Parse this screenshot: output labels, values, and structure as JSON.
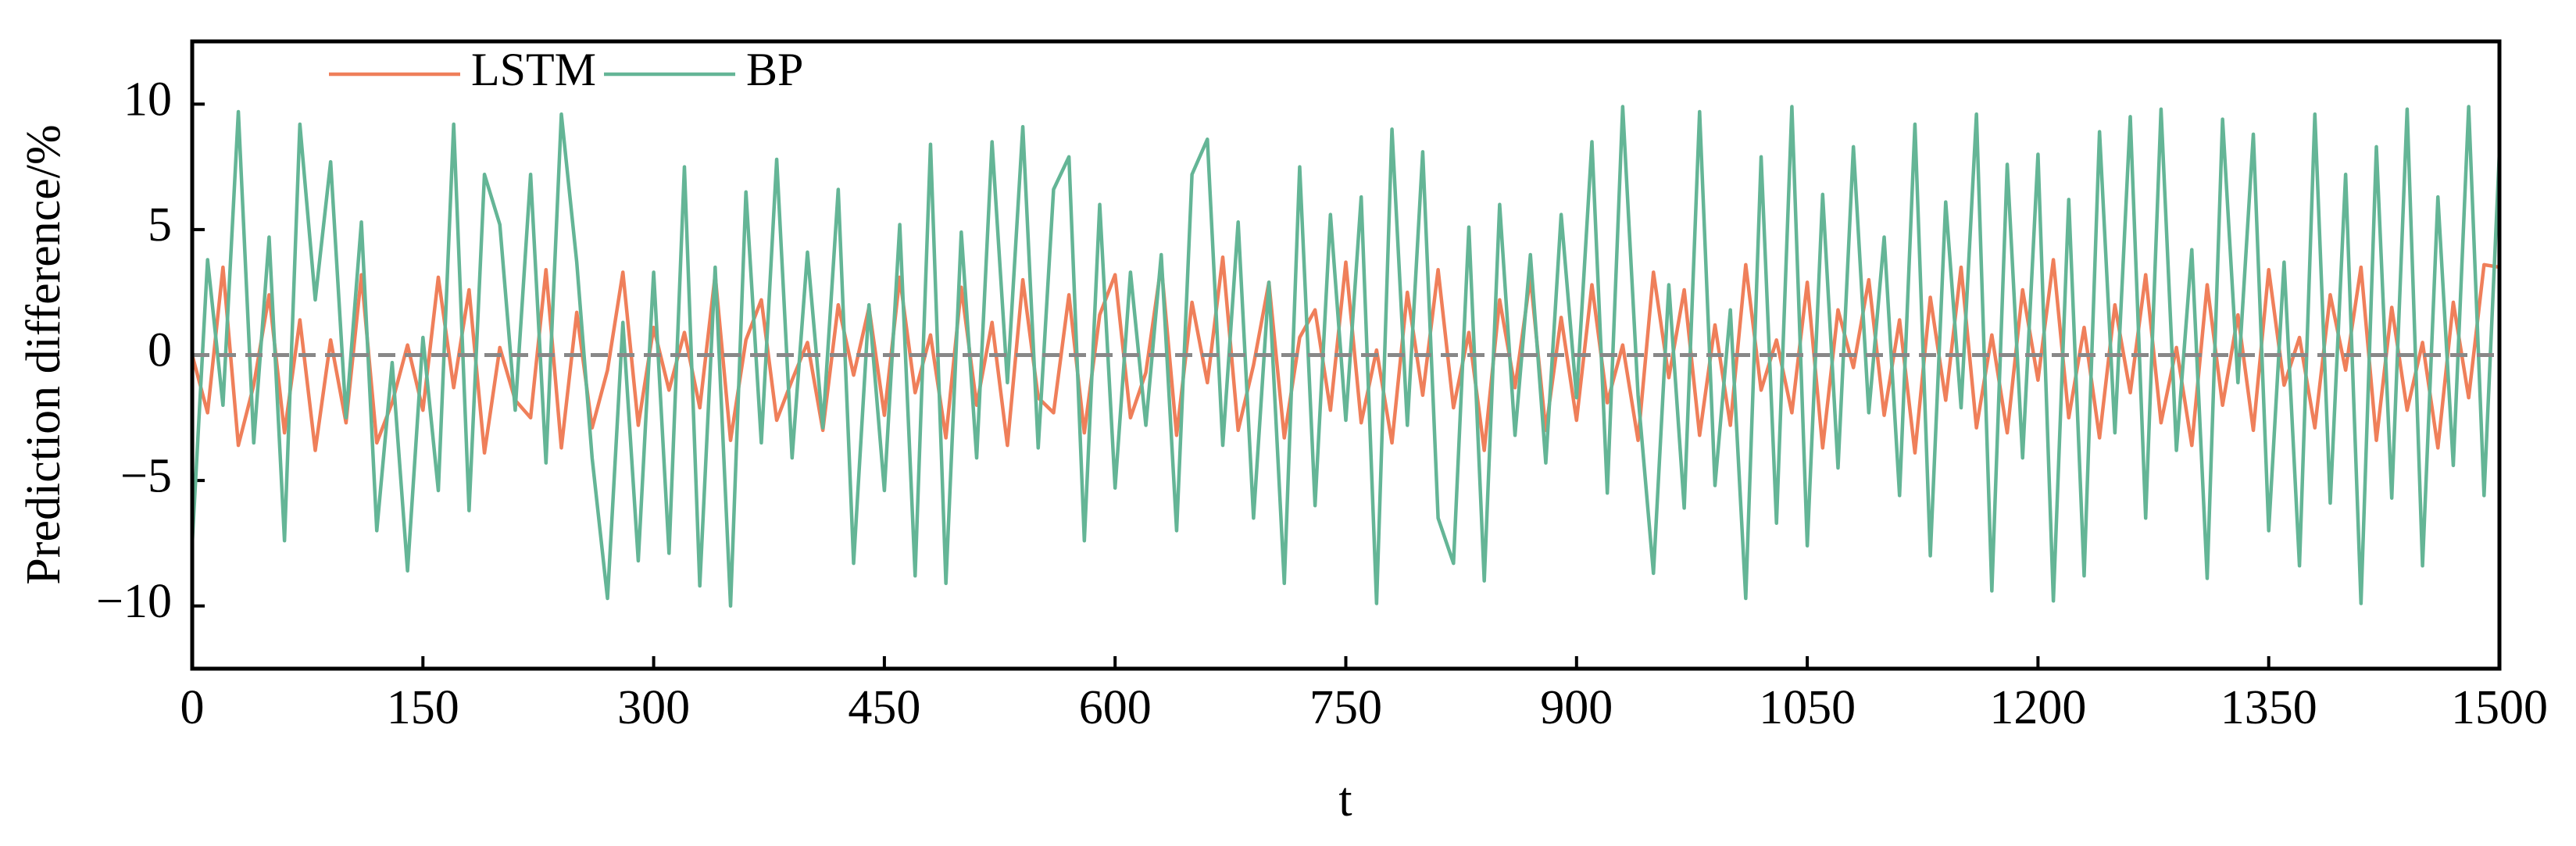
{
  "chart_data": {
    "type": "line",
    "xlabel": "t",
    "ylabel": "Prediction difference/%",
    "xlim": [
      0,
      1500
    ],
    "xticks": [
      0,
      150,
      300,
      450,
      600,
      750,
      900,
      1050,
      1200,
      1350,
      1500
    ],
    "ylim": [
      -12.5,
      12.5
    ],
    "yticks": [
      {
        "value": -10,
        "label": "−10"
      },
      {
        "value": -5,
        "label": "−5"
      },
      0,
      5,
      10
    ],
    "reference_line": 0,
    "reference_color": "#888888",
    "legend": "upper left",
    "x": [
      0,
      10,
      20,
      30,
      40,
      50,
      60,
      70,
      80,
      90,
      100,
      110,
      120,
      130,
      140,
      150,
      160,
      170,
      180,
      190,
      200,
      210,
      220,
      230,
      240,
      250,
      260,
      270,
      280,
      290,
      300,
      310,
      320,
      330,
      340,
      350,
      360,
      370,
      380,
      390,
      400,
      410,
      420,
      430,
      440,
      450,
      460,
      470,
      480,
      490,
      500,
      510,
      520,
      530,
      540,
      550,
      560,
      570,
      580,
      590,
      600,
      610,
      620,
      630,
      640,
      650,
      660,
      670,
      680,
      690,
      700,
      710,
      720,
      730,
      740,
      750,
      760,
      770,
      780,
      790,
      800,
      810,
      820,
      830,
      840,
      850,
      860,
      870,
      880,
      890,
      900,
      910,
      920,
      930,
      940,
      950,
      960,
      970,
      980,
      990,
      1000,
      1010,
      1020,
      1030,
      1040,
      1050,
      1060,
      1070,
      1080,
      1090,
      1100,
      1110,
      1120,
      1130,
      1140,
      1150,
      1160,
      1170,
      1180,
      1190,
      1200,
      1210,
      1220,
      1230,
      1240,
      1250,
      1260,
      1270,
      1280,
      1290,
      1300,
      1310,
      1320,
      1330,
      1340,
      1350,
      1360,
      1370,
      1380,
      1390,
      1400,
      1410,
      1420,
      1430,
      1440,
      1450,
      1460,
      1470,
      1480,
      1490,
      1500
    ],
    "series": [
      {
        "name": "LSTM",
        "color": "#ef7f5a",
        "values": [
          0,
          -2.3,
          3.5,
          -3.6,
          -1.2,
          2.4,
          -3.1,
          1.4,
          -3.8,
          0.6,
          -2.7,
          3.2,
          -3.5,
          -1.9,
          0.4,
          -2.2,
          3.1,
          -1.3,
          2.6,
          -3.9,
          0.3,
          -1.8,
          -2.5,
          3.4,
          -3.7,
          1.7,
          -2.9,
          -0.6,
          3.3,
          -2.8,
          1.1,
          -1.4,
          0.9,
          -2.1,
          3.2,
          -3.4,
          0.6,
          2.2,
          -2.6,
          -1.0,
          0.5,
          -3.0,
          2.0,
          -0.8,
          1.9,
          -2.4,
          3.1,
          -1.5,
          0.8,
          -3.3,
          2.7,
          -2.0,
          1.3,
          -3.6,
          3.0,
          -1.7,
          -2.3,
          2.4,
          -3.1,
          1.6,
          3.2,
          -2.5,
          -0.7,
          3.6,
          -3.2,
          2.1,
          -1.1,
          3.9,
          -3.0,
          -0.4,
          2.9,
          -3.3,
          0.7,
          1.8,
          -2.2,
          3.7,
          -2.7,
          0.2,
          -3.5,
          2.5,
          -1.6,
          3.4,
          -2.1,
          0.9,
          -3.8,
          2.2,
          -1.3,
          3.1,
          -3.0,
          1.5,
          -2.6,
          2.8,
          -1.9,
          0.4,
          -3.4,
          3.3,
          -0.9,
          2.6,
          -3.2,
          1.2,
          -2.8,
          3.6,
          -1.4,
          0.6,
          -2.3,
          2.9,
          -3.7,
          1.8,
          -0.5,
          3.0,
          -2.4,
          1.4,
          -3.9,
          2.3,
          -1.8,
          3.5,
          -2.9,
          0.8,
          -3.1,
          2.6,
          -1.0,
          3.8,
          -2.5,
          1.1,
          -3.3,
          2.0,
          -1.5,
          3.2,
          -2.7,
          0.3,
          -3.6,
          2.8,
          -2.0,
          1.6,
          -3.0,
          3.4,
          -1.2,
          0.7,
          -2.9,
          2.4,
          -0.6,
          3.5,
          -3.4,
          1.9,
          -2.2,
          0.5,
          -3.7,
          2.1,
          -1.7,
          3.6,
          3.5
        ]
      },
      {
        "name": "BP",
        "color": "#64b596",
        "values": [
          -7.5,
          3.8,
          -2.0,
          9.7,
          -3.5,
          4.7,
          -7.4,
          9.2,
          2.2,
          7.7,
          -2.5,
          5.3,
          -7.0,
          -0.3,
          -8.6,
          0.7,
          -5.4,
          9.2,
          -6.2,
          7.2,
          5.2,
          -2.2,
          7.2,
          -4.3,
          9.6,
          3.7,
          -4.1,
          -9.7,
          1.3,
          -8.2,
          3.3,
          -7.9,
          7.5,
          -9.2,
          3.5,
          -10.0,
          6.5,
          -3.5,
          7.8,
          -4.1,
          4.1,
          -2.9,
          6.6,
          -8.3,
          2.0,
          -5.4,
          5.2,
          -8.8,
          8.4,
          -9.1,
          4.9,
          -4.1,
          8.5,
          -1.1,
          9.1,
          -3.7,
          6.6,
          7.9,
          -7.4,
          6.0,
          -5.3,
          3.3,
          -2.8,
          4.0,
          -7.0,
          7.2,
          8.6,
          -3.6,
          5.3,
          -6.5,
          2.9,
          -9.1,
          7.5,
          -6.0,
          5.6,
          -2.6,
          6.3,
          -9.9,
          9.0,
          -2.8,
          8.1,
          -6.5,
          -8.3,
          5.1,
          -9.0,
          6.0,
          -3.2,
          4.0,
          -4.3,
          5.6,
          -1.7,
          8.5,
          -5.5,
          9.9,
          -1.6,
          -8.7,
          2.8,
          -6.1,
          9.7,
          -5.2,
          1.8,
          -9.7,
          7.9,
          -6.7,
          9.9,
          -7.6,
          6.4,
          -4.5,
          8.3,
          -2.3,
          4.7,
          -5.6,
          9.2,
          -8.0,
          6.1,
          -2.1,
          9.6,
          -9.4,
          7.6,
          -4.1,
          8.0,
          -9.8,
          6.2,
          -8.8,
          8.9,
          -3.1,
          9.5,
          -6.5,
          9.8,
          -3.8,
          4.2,
          -8.9,
          9.4,
          -1.1,
          8.8,
          -7.0,
          3.7,
          -8.4,
          9.6,
          -5.9,
          7.2,
          -9.9,
          8.3,
          -5.7,
          9.8,
          -8.4,
          6.3,
          -4.4,
          9.9,
          -5.6,
          8.1
        ]
      }
    ]
  }
}
